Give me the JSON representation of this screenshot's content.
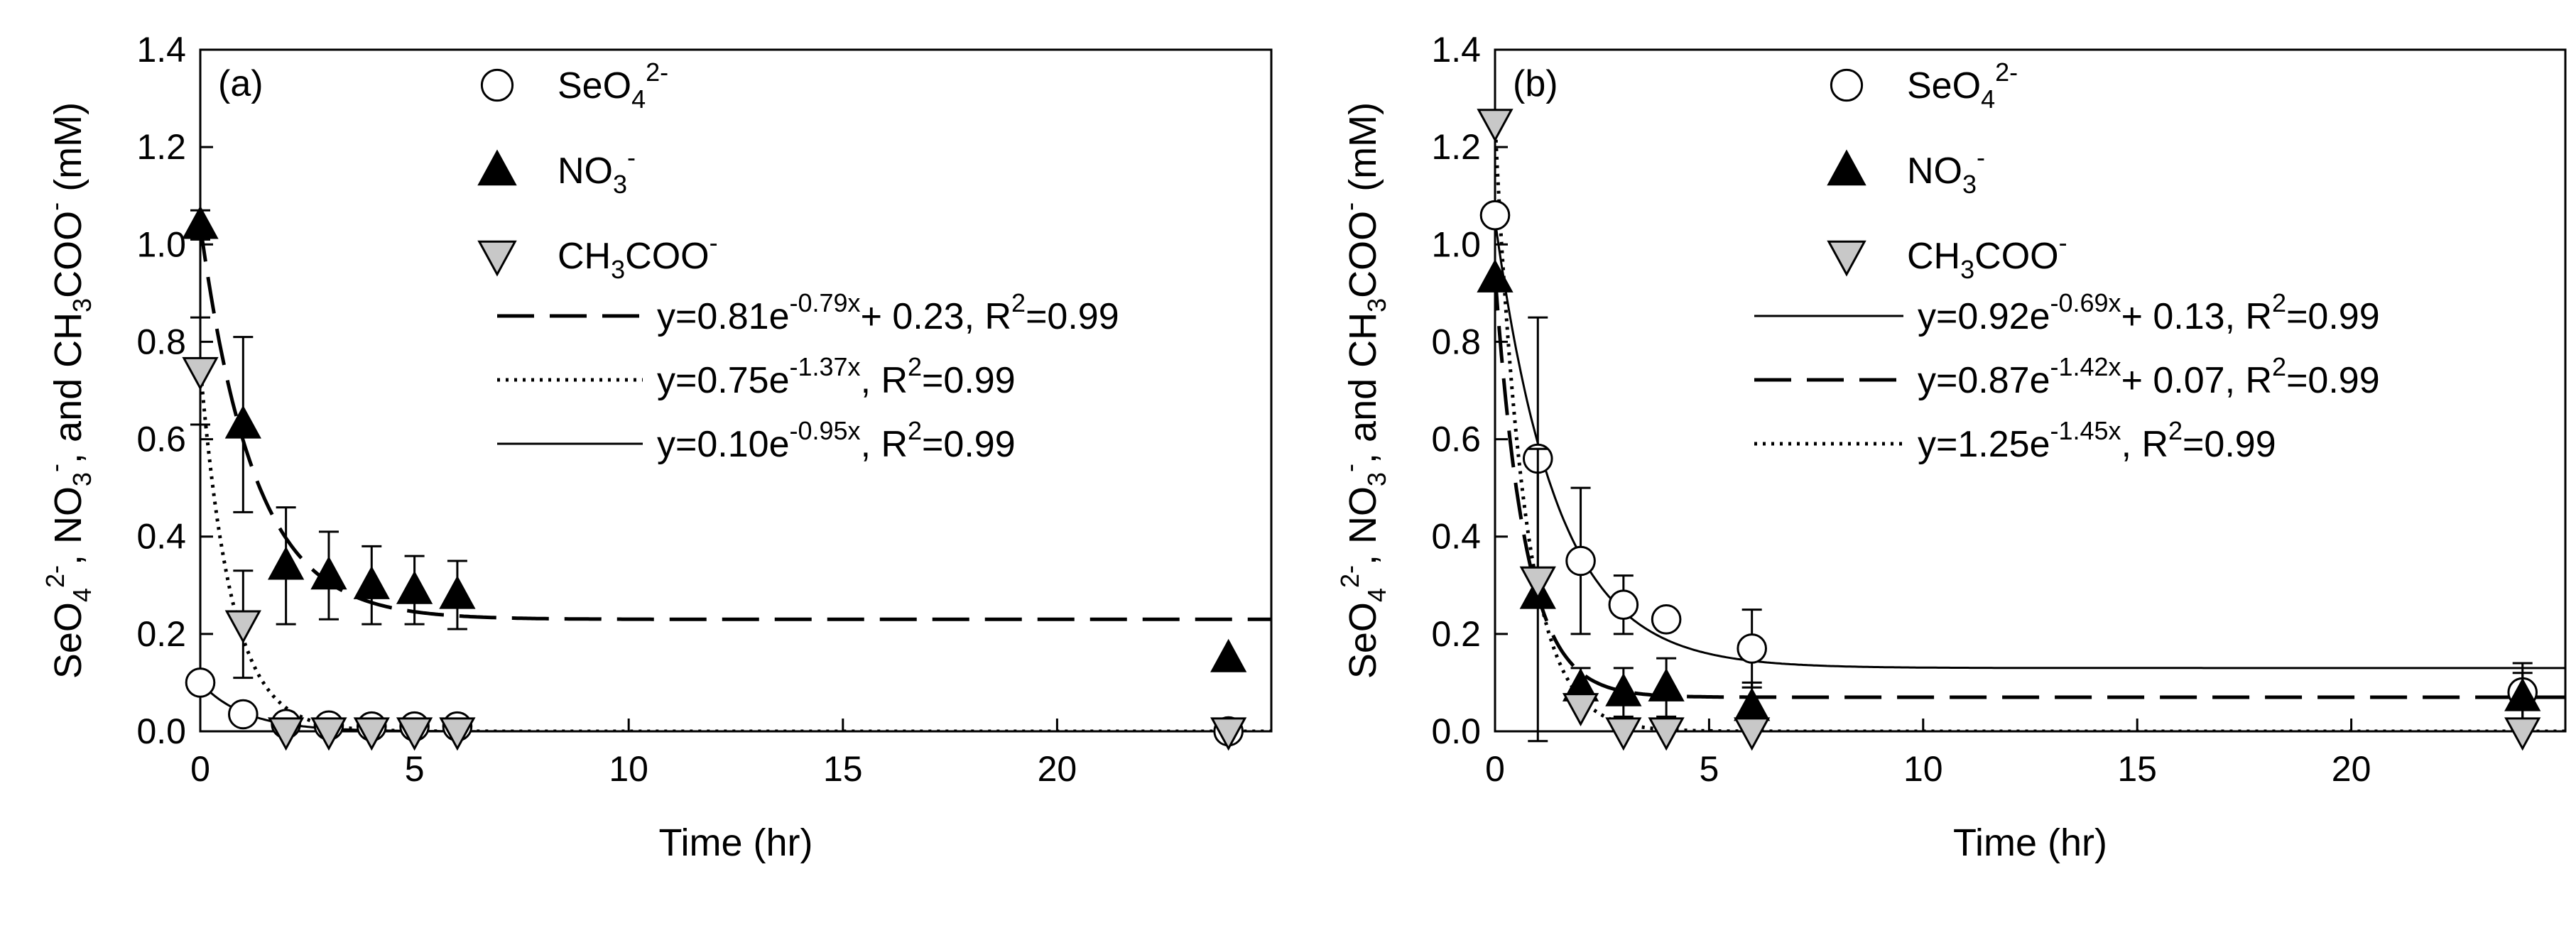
{
  "chart_data": [
    {
      "type": "scatter",
      "panel_label": "(a)",
      "xlabel": "Time (hr)",
      "ylabel": "SeO4 2-, NO3 -, and CH3COO- (mM)",
      "xlim": [
        0,
        25
      ],
      "ylim": [
        0,
        1.4
      ],
      "xticks": [
        0,
        5,
        10,
        15,
        20
      ],
      "yticks": [
        0.0,
        0.2,
        0.4,
        0.6,
        0.8,
        1.0,
        1.2,
        1.4
      ],
      "series": [
        {
          "name": "SeO4 2-",
          "legend": {
            "base": "SeO",
            "sub": "4",
            "sup": "2-"
          },
          "marker": "circle",
          "fill": "#ffffff",
          "stroke": "#000000",
          "points": [
            {
              "x": 0,
              "y": 0.1,
              "err": 0.0
            },
            {
              "x": 1,
              "y": 0.035,
              "err": 0.0
            },
            {
              "x": 2,
              "y": 0.015,
              "err": 0.0
            },
            {
              "x": 3,
              "y": 0.012,
              "err": 0.0
            },
            {
              "x": 4,
              "y": 0.01,
              "err": 0.0
            },
            {
              "x": 5,
              "y": 0.01,
              "err": 0.0
            },
            {
              "x": 6,
              "y": 0.01,
              "err": 0.0
            },
            {
              "x": 24,
              "y": 0.0,
              "err": 0.0
            }
          ]
        },
        {
          "name": "NO3 -",
          "legend": {
            "base": "NO",
            "sub": "3",
            "sup": "-"
          },
          "marker": "triangle-up",
          "fill": "#000000",
          "stroke": "#000000",
          "points": [
            {
              "x": 0,
              "y": 1.04,
              "err": 0.03
            },
            {
              "x": 1,
              "y": 0.63,
              "err": 0.18
            },
            {
              "x": 2,
              "y": 0.34,
              "err": 0.12
            },
            {
              "x": 3,
              "y": 0.32,
              "err": 0.09
            },
            {
              "x": 4,
              "y": 0.3,
              "err": 0.08
            },
            {
              "x": 5,
              "y": 0.29,
              "err": 0.07
            },
            {
              "x": 6,
              "y": 0.28,
              "err": 0.07
            },
            {
              "x": 24,
              "y": 0.15,
              "err": 0.0
            }
          ]
        },
        {
          "name": "CH3COO-",
          "legend": {
            "base": "CH",
            "sub": "3",
            "base2": "COO",
            "sup": "-"
          },
          "marker": "triangle-down",
          "fill": "#c8c8c8",
          "stroke": "#000000",
          "points": [
            {
              "x": 0,
              "y": 0.74,
              "err": 0.11
            },
            {
              "x": 1,
              "y": 0.22,
              "err": 0.11
            },
            {
              "x": 2,
              "y": 0.0,
              "err": 0.0
            },
            {
              "x": 3,
              "y": 0.0,
              "err": 0.0
            },
            {
              "x": 4,
              "y": 0.0,
              "err": 0.0
            },
            {
              "x": 5,
              "y": 0.0,
              "err": 0.0
            },
            {
              "x": 6,
              "y": 0.0,
              "err": 0.0
            },
            {
              "x": 24,
              "y": 0.0,
              "err": 0.0
            }
          ]
        }
      ],
      "fits": [
        {
          "style": "dashed",
          "a": 0.81,
          "k": 0.79,
          "c": 0.23,
          "parts": [
            "y=0.81e",
            "-0.79x",
            "+ 0.23, R",
            "2",
            "=0.99"
          ]
        },
        {
          "style": "dotted",
          "a": 0.75,
          "k": 1.37,
          "c": 0,
          "parts": [
            "y=0.75e",
            "-1.37x",
            ", R",
            "2",
            "=0.99"
          ]
        },
        {
          "style": "solid",
          "a": 0.1,
          "k": 0.95,
          "c": 0,
          "parts": [
            "y=0.10e",
            "-0.95x",
            ", R",
            "2",
            "=0.99"
          ]
        }
      ]
    },
    {
      "type": "scatter",
      "panel_label": "(b)",
      "xlabel": "Time (hr)",
      "ylabel": "SeO4 2-, NO3 -, and CH3COO- (mM)",
      "xlim": [
        0,
        25
      ],
      "ylim": [
        0,
        1.4
      ],
      "xticks": [
        0,
        5,
        10,
        15,
        20
      ],
      "yticks": [
        0.0,
        0.2,
        0.4,
        0.6,
        0.8,
        1.0,
        1.2,
        1.4
      ],
      "series": [
        {
          "name": "SeO4 2-",
          "legend": {
            "base": "SeO",
            "sub": "4",
            "sup": "2-"
          },
          "marker": "circle",
          "fill": "#ffffff",
          "stroke": "#000000",
          "points": [
            {
              "x": 0,
              "y": 1.06,
              "err": 0.0
            },
            {
              "x": 1,
              "y": 0.56,
              "err": 0.29
            },
            {
              "x": 2,
              "y": 0.35,
              "err": 0.15
            },
            {
              "x": 3,
              "y": 0.26,
              "err": 0.06
            },
            {
              "x": 4,
              "y": 0.23,
              "err": 0.0
            },
            {
              "x": 6,
              "y": 0.17,
              "err": 0.08
            },
            {
              "x": 24,
              "y": 0.08,
              "err": 0.06
            }
          ]
        },
        {
          "name": "NO3 -",
          "legend": {
            "base": "NO",
            "sub": "3",
            "sup": "-"
          },
          "marker": "triangle-up",
          "fill": "#000000",
          "stroke": "#000000",
          "points": [
            {
              "x": 0,
              "y": 0.93,
              "err": 0.0
            },
            {
              "x": 1,
              "y": 0.28,
              "err": 0.3
            },
            {
              "x": 2,
              "y": 0.09,
              "err": 0.04
            },
            {
              "x": 3,
              "y": 0.08,
              "err": 0.05
            },
            {
              "x": 4,
              "y": 0.09,
              "err": 0.06
            },
            {
              "x": 6,
              "y": 0.05,
              "err": 0.05
            },
            {
              "x": 24,
              "y": 0.07,
              "err": 0.05
            }
          ]
        },
        {
          "name": "CH3COO-",
          "legend": {
            "base": "CH",
            "sub": "3",
            "base2": "COO",
            "sup": "-"
          },
          "marker": "triangle-down",
          "fill": "#c8c8c8",
          "stroke": "#000000",
          "points": [
            {
              "x": 0,
              "y": 1.25,
              "err": 0.0
            },
            {
              "x": 1,
              "y": 0.31,
              "err": 0.0
            },
            {
              "x": 2,
              "y": 0.05,
              "err": 0.0
            },
            {
              "x": 3,
              "y": 0.0,
              "err": 0.0
            },
            {
              "x": 4,
              "y": 0.0,
              "err": 0.0
            },
            {
              "x": 6,
              "y": 0.0,
              "err": 0.0
            },
            {
              "x": 24,
              "y": 0.0,
              "err": 0.0
            }
          ]
        }
      ],
      "fits": [
        {
          "style": "solid",
          "a": 0.92,
          "k": 0.69,
          "c": 0.13,
          "parts": [
            "y=0.92e",
            "-0.69x",
            "+ 0.13, R",
            "2",
            "=0.99"
          ]
        },
        {
          "style": "dashed",
          "a": 0.87,
          "k": 1.42,
          "c": 0.07,
          "parts": [
            "y=0.87e",
            "-1.42x",
            "+ 0.07, R",
            "2",
            "=0.99"
          ]
        },
        {
          "style": "dotted",
          "a": 1.25,
          "k": 1.45,
          "c": 0,
          "parts": [
            "y=1.25e",
            "-1.45x",
            ", R",
            "2",
            "=0.99"
          ]
        }
      ]
    }
  ]
}
